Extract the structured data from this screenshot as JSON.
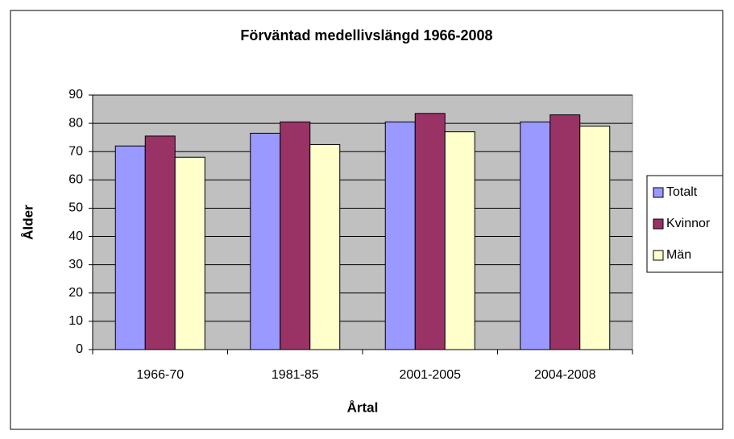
{
  "chart_data": {
    "type": "bar",
    "title": "Förväntad medellivslängd 1966-2008",
    "x_label": "Årtal",
    "y_label": "Ålder",
    "categories": [
      "1966-70",
      "1981-85",
      "2001-2005",
      "2004-2008"
    ],
    "series": [
      {
        "name": "Totalt",
        "color": "#9999ff",
        "values": [
          72,
          76.5,
          80.5,
          80.5
        ]
      },
      {
        "name": "Kvinnor",
        "color": "#993366",
        "values": [
          75.5,
          80.5,
          83.5,
          83
        ]
      },
      {
        "name": "Män",
        "color": "#ffffcc",
        "values": [
          68,
          72.5,
          77,
          79
        ]
      }
    ],
    "ylim": [
      0,
      90
    ],
    "yticks": [
      0,
      10,
      20,
      30,
      40,
      50,
      60,
      70,
      80,
      90
    ],
    "grid": true,
    "legend": "right",
    "plot_background": "#c0c0c0"
  }
}
